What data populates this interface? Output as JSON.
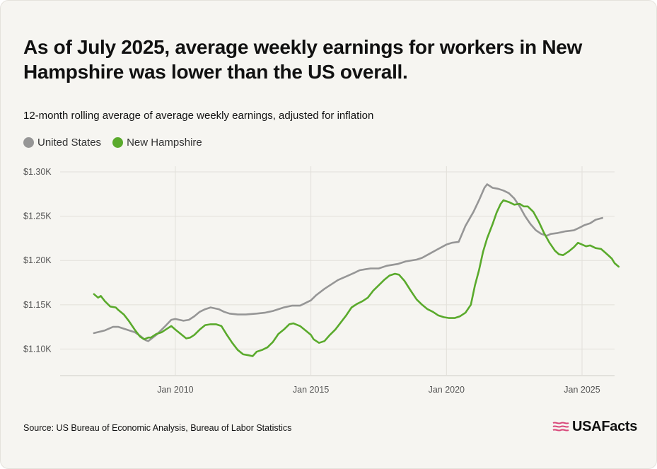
{
  "title": "As of July 2025, average weekly earnings for workers in New Hampshire was lower than the US overall.",
  "subtitle": "12-month rolling average of average weekly earnings, adjusted for inflation",
  "source": "Source: US Bureau of Economic Analysis, Bureau of Labor Statistics",
  "brand": "USAFacts",
  "colors": {
    "us": "#969696",
    "nh": "#5aaa2c",
    "grid": "#e2e0da",
    "axis_text": "#555555"
  },
  "chart_data": {
    "type": "line",
    "xlabel": "",
    "ylabel": "",
    "x_unit": "year",
    "xlim": [
      2005.75,
      2026.2
    ],
    "ylim": [
      1070,
      1300
    ],
    "yticks": [
      {
        "value": 1100,
        "label": "$1.10K"
      },
      {
        "value": 1150,
        "label": "$1.15K"
      },
      {
        "value": 1200,
        "label": "$1.20K"
      },
      {
        "value": 1250,
        "label": "$1.25K"
      },
      {
        "value": 1300,
        "label": "$1.30K"
      }
    ],
    "xticks": [
      {
        "value": 2010,
        "label": "Jan 2010"
      },
      {
        "value": 2015,
        "label": "Jan 2015"
      },
      {
        "value": 2020,
        "label": "Jan 2020"
      },
      {
        "value": 2025,
        "label": "Jan 2025"
      }
    ],
    "legend_position": "top-left",
    "grid": true,
    "series": [
      {
        "name": "United States",
        "color": "#969696",
        "points": [
          [
            2007.0,
            1118
          ],
          [
            2007.4,
            1121
          ],
          [
            2007.7,
            1125
          ],
          [
            2007.9,
            1125
          ],
          [
            2008.2,
            1122
          ],
          [
            2008.5,
            1119
          ],
          [
            2008.7,
            1115
          ],
          [
            2008.9,
            1110
          ],
          [
            2009.0,
            1109
          ],
          [
            2009.3,
            1116
          ],
          [
            2009.6,
            1125
          ],
          [
            2009.85,
            1133
          ],
          [
            2010.0,
            1134
          ],
          [
            2010.3,
            1132
          ],
          [
            2010.5,
            1133
          ],
          [
            2010.7,
            1137
          ],
          [
            2010.9,
            1142
          ],
          [
            2011.1,
            1145
          ],
          [
            2011.3,
            1147
          ],
          [
            2011.6,
            1145
          ],
          [
            2011.8,
            1142
          ],
          [
            2012.0,
            1140
          ],
          [
            2012.3,
            1139
          ],
          [
            2012.6,
            1139
          ],
          [
            2013.0,
            1140
          ],
          [
            2013.3,
            1141
          ],
          [
            2013.6,
            1143
          ],
          [
            2014.0,
            1147
          ],
          [
            2014.3,
            1149
          ],
          [
            2014.6,
            1149
          ],
          [
            2014.8,
            1152
          ],
          [
            2015.0,
            1155
          ],
          [
            2015.2,
            1161
          ],
          [
            2015.5,
            1168
          ],
          [
            2015.8,
            1174
          ],
          [
            2016.0,
            1178
          ],
          [
            2016.3,
            1182
          ],
          [
            2016.6,
            1186
          ],
          [
            2016.8,
            1189
          ],
          [
            2017.0,
            1190
          ],
          [
            2017.2,
            1191
          ],
          [
            2017.5,
            1191
          ],
          [
            2017.8,
            1194
          ],
          [
            2018.2,
            1196
          ],
          [
            2018.5,
            1199
          ],
          [
            2018.9,
            1201
          ],
          [
            2019.1,
            1203
          ],
          [
            2019.4,
            1208
          ],
          [
            2019.7,
            1213
          ],
          [
            2020.0,
            1218
          ],
          [
            2020.2,
            1220
          ],
          [
            2020.45,
            1221
          ],
          [
            2020.7,
            1239
          ],
          [
            2021.0,
            1255
          ],
          [
            2021.2,
            1268
          ],
          [
            2021.4,
            1282
          ],
          [
            2021.5,
            1286
          ],
          [
            2021.7,
            1282
          ],
          [
            2021.9,
            1281
          ],
          [
            2022.1,
            1279
          ],
          [
            2022.3,
            1276
          ],
          [
            2022.5,
            1270
          ],
          [
            2022.7,
            1261
          ],
          [
            2022.9,
            1250
          ],
          [
            2023.1,
            1241
          ],
          [
            2023.3,
            1234
          ],
          [
            2023.5,
            1230
          ],
          [
            2023.7,
            1228
          ],
          [
            2023.85,
            1230
          ],
          [
            2024.1,
            1231
          ],
          [
            2024.4,
            1233
          ],
          [
            2024.7,
            1234
          ],
          [
            2024.9,
            1237
          ],
          [
            2025.1,
            1240
          ],
          [
            2025.3,
            1242
          ],
          [
            2025.5,
            1246
          ],
          [
            2025.75,
            1248
          ]
        ]
      },
      {
        "name": "New Hampshire",
        "color": "#5aaa2c",
        "points": [
          [
            2007.0,
            1162
          ],
          [
            2007.15,
            1158
          ],
          [
            2007.25,
            1160
          ],
          [
            2007.4,
            1154
          ],
          [
            2007.6,
            1148
          ],
          [
            2007.8,
            1147
          ],
          [
            2007.9,
            1144
          ],
          [
            2008.1,
            1139
          ],
          [
            2008.3,
            1131
          ],
          [
            2008.5,
            1122
          ],
          [
            2008.7,
            1114
          ],
          [
            2008.85,
            1111
          ],
          [
            2009.0,
            1113
          ],
          [
            2009.1,
            1113
          ],
          [
            2009.3,
            1117
          ],
          [
            2009.5,
            1119
          ],
          [
            2009.7,
            1123
          ],
          [
            2009.85,
            1126
          ],
          [
            2010.0,
            1122
          ],
          [
            2010.2,
            1117
          ],
          [
            2010.4,
            1112
          ],
          [
            2010.55,
            1113
          ],
          [
            2010.7,
            1116
          ],
          [
            2010.9,
            1122
          ],
          [
            2011.1,
            1127
          ],
          [
            2011.3,
            1128
          ],
          [
            2011.5,
            1128
          ],
          [
            2011.7,
            1126
          ],
          [
            2011.9,
            1116
          ],
          [
            2012.1,
            1107
          ],
          [
            2012.3,
            1099
          ],
          [
            2012.5,
            1094
          ],
          [
            2012.7,
            1093
          ],
          [
            2012.85,
            1092
          ],
          [
            2013.0,
            1097
          ],
          [
            2013.2,
            1099
          ],
          [
            2013.4,
            1102
          ],
          [
            2013.6,
            1108
          ],
          [
            2013.8,
            1117
          ],
          [
            2014.0,
            1122
          ],
          [
            2014.2,
            1128
          ],
          [
            2014.35,
            1129
          ],
          [
            2014.6,
            1126
          ],
          [
            2014.8,
            1121
          ],
          [
            2015.0,
            1116
          ],
          [
            2015.1,
            1111
          ],
          [
            2015.3,
            1107
          ],
          [
            2015.5,
            1109
          ],
          [
            2015.7,
            1116
          ],
          [
            2015.9,
            1122
          ],
          [
            2016.1,
            1130
          ],
          [
            2016.3,
            1138
          ],
          [
            2016.5,
            1147
          ],
          [
            2016.7,
            1151
          ],
          [
            2016.9,
            1154
          ],
          [
            2017.1,
            1158
          ],
          [
            2017.3,
            1166
          ],
          [
            2017.5,
            1172
          ],
          [
            2017.7,
            1178
          ],
          [
            2017.9,
            1183
          ],
          [
            2018.1,
            1185
          ],
          [
            2018.25,
            1184
          ],
          [
            2018.45,
            1177
          ],
          [
            2018.7,
            1165
          ],
          [
            2018.9,
            1156
          ],
          [
            2019.1,
            1150
          ],
          [
            2019.3,
            1145
          ],
          [
            2019.5,
            1142
          ],
          [
            2019.7,
            1138
          ],
          [
            2019.9,
            1136
          ],
          [
            2020.1,
            1135
          ],
          [
            2020.3,
            1135
          ],
          [
            2020.5,
            1137
          ],
          [
            2020.7,
            1141
          ],
          [
            2020.9,
            1150
          ],
          [
            2021.05,
            1172
          ],
          [
            2021.2,
            1189
          ],
          [
            2021.35,
            1210
          ],
          [
            2021.5,
            1225
          ],
          [
            2021.7,
            1241
          ],
          [
            2021.85,
            1254
          ],
          [
            2022.0,
            1264
          ],
          [
            2022.1,
            1268
          ],
          [
            2022.3,
            1266
          ],
          [
            2022.5,
            1263
          ],
          [
            2022.7,
            1264
          ],
          [
            2022.85,
            1261
          ],
          [
            2023.0,
            1261
          ],
          [
            2023.2,
            1255
          ],
          [
            2023.4,
            1244
          ],
          [
            2023.6,
            1231
          ],
          [
            2023.8,
            1220
          ],
          [
            2024.0,
            1211
          ],
          [
            2024.15,
            1207
          ],
          [
            2024.3,
            1206
          ],
          [
            2024.5,
            1210
          ],
          [
            2024.7,
            1215
          ],
          [
            2024.85,
            1220
          ],
          [
            2025.0,
            1218
          ],
          [
            2025.15,
            1216
          ],
          [
            2025.3,
            1217
          ],
          [
            2025.5,
            1214
          ],
          [
            2025.7,
            1213
          ],
          [
            2025.85,
            1209
          ],
          [
            2026.0,
            1205
          ],
          [
            2026.1,
            1202
          ],
          [
            2026.2,
            1197
          ],
          [
            2026.35,
            1193
          ]
        ]
      }
    ]
  }
}
